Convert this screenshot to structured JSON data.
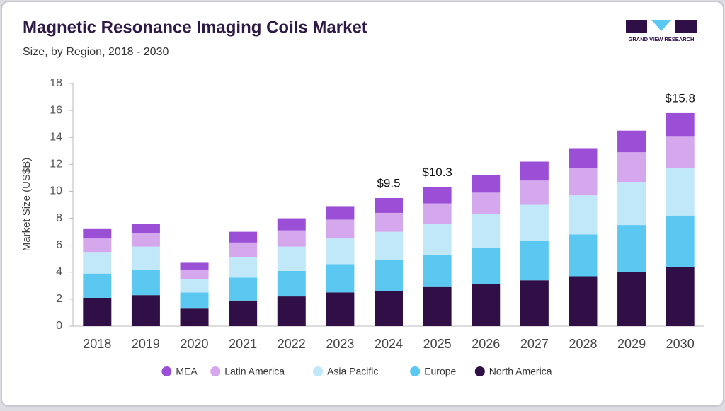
{
  "logo": "GRAND VIEW RESEARCH",
  "chart_data": {
    "type": "stacked-bar",
    "title": "Magnetic Resonance Imaging Coils Market",
    "subtitle": "Size, by Region, 2018 - 2030",
    "y_label": "Market Size (US$B)",
    "categories": [
      "2018",
      "2019",
      "2020",
      "2021",
      "2022",
      "2023",
      "2024",
      "2025",
      "2026",
      "2027",
      "2028",
      "2029",
      "2030"
    ],
    "series": [
      {
        "name": "MEA",
        "color": "#9b4fd6",
        "values": [
          0.7,
          0.7,
          0.5,
          0.8,
          0.9,
          1.0,
          1.1,
          1.2,
          1.3,
          1.4,
          1.5,
          1.6,
          1.7
        ]
      },
      {
        "name": "Latin America",
        "color": "#d5a8ee",
        "values": [
          1.0,
          1.0,
          0.7,
          1.1,
          1.2,
          1.4,
          1.4,
          1.5,
          1.6,
          1.8,
          2.0,
          2.2,
          2.4
        ]
      },
      {
        "name": "Asia Pacific",
        "color": "#c0e8f9",
        "values": [
          1.6,
          1.7,
          1.0,
          1.5,
          1.8,
          1.9,
          2.1,
          2.3,
          2.5,
          2.7,
          2.9,
          3.2,
          3.5
        ]
      },
      {
        "name": "Europe",
        "color": "#5bc8f1",
        "values": [
          1.8,
          1.9,
          1.2,
          1.7,
          1.9,
          2.1,
          2.3,
          2.4,
          2.7,
          2.9,
          3.1,
          3.5,
          3.8
        ]
      },
      {
        "name": "North America",
        "color": "#2f0f46",
        "values": [
          2.1,
          2.3,
          1.3,
          1.9,
          2.2,
          2.5,
          2.6,
          2.9,
          3.1,
          3.4,
          3.7,
          4.0,
          4.4
        ]
      }
    ],
    "annotations": [
      {
        "x": "2024",
        "value": 9.5,
        "label": "$9.5"
      },
      {
        "x": "2025",
        "value": 10.3,
        "label": "$10.3"
      },
      {
        "x": "2030",
        "value": 15.8,
        "label": "$15.8"
      }
    ],
    "ylim": [
      0,
      18
    ],
    "yticks": [
      0,
      2,
      4,
      6,
      8,
      10,
      12,
      14,
      16,
      18
    ],
    "legend": "bottom"
  }
}
